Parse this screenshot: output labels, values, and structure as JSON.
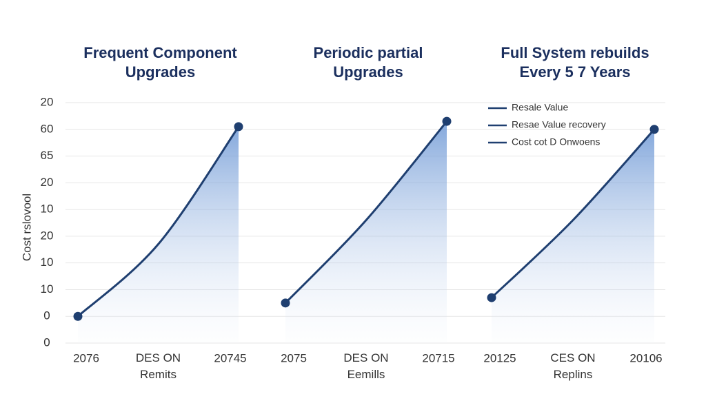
{
  "chart_data": [
    {
      "type": "line",
      "title": "Frequent Component\nUpgrades",
      "y_label": "Cost rslovool",
      "categories": [
        "2076",
        "DES ON\nRemits",
        "20745"
      ],
      "series": [
        {
          "color": "#1f3f70",
          "values": [
            1.0,
            3.7,
            8.1
          ]
        }
      ],
      "ylim": [
        0,
        9
      ],
      "yticks": [
        {
          "value": 0,
          "label": "0"
        },
        {
          "value": 1,
          "label": "0"
        },
        {
          "value": 2,
          "label": "10"
        },
        {
          "value": 3,
          "label": "10"
        },
        {
          "value": 4,
          "label": "20"
        },
        {
          "value": 5,
          "label": "10"
        },
        {
          "value": 6,
          "label": "20"
        },
        {
          "value": 7,
          "label": "65"
        },
        {
          "value": 8,
          "label": "60"
        },
        {
          "value": 9,
          "label": "20"
        }
      ],
      "grid": true
    },
    {
      "type": "line",
      "title": "Periodic partial\nUpgrades",
      "categories": [
        "2075",
        "DES ON\nEemills",
        "20715"
      ],
      "series": [
        {
          "color": "#1f3f70",
          "values": [
            1.5,
            4.6,
            8.3
          ]
        }
      ],
      "ylim": [
        0,
        9
      ]
    },
    {
      "type": "line",
      "title": "Full System rebuilds\nEvery 5 7 Years",
      "categories": [
        "20125",
        "CES ON\nReplins",
        "20106"
      ],
      "series": [
        {
          "color": "#1f3f70",
          "values": [
            1.7,
            4.6,
            8.0
          ]
        }
      ],
      "ylim": [
        0,
        9
      ],
      "legend": {
        "position": "upper left",
        "color": "#1f3f70",
        "entries": [
          "Resale Value",
          "Resae Value recovery",
          "Cost  cot D Onwoens"
        ]
      }
    }
  ]
}
